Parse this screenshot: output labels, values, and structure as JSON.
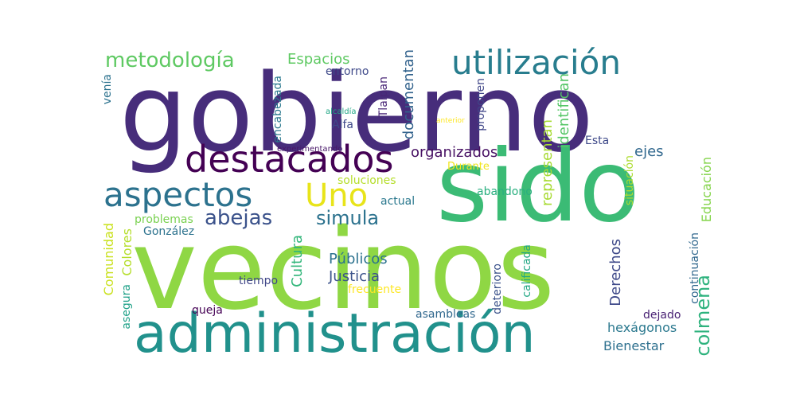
{
  "words": [
    {
      "text": "gobierno",
      "color": "#472d7b"
    },
    {
      "text": "vecinos",
      "color": "#8fd744"
    },
    {
      "text": "sido",
      "color": "#3bbb75"
    },
    {
      "text": "administración",
      "color": "#21918c"
    },
    {
      "text": "destacados",
      "color": "#440154"
    },
    {
      "text": "utilización",
      "color": "#287d8e"
    },
    {
      "text": "aspectos",
      "color": "#2c728e"
    },
    {
      "text": "Uno",
      "color": "#e8e419"
    },
    {
      "text": "metodología",
      "color": "#5ec962"
    },
    {
      "text": "abejas",
      "color": "#3b528b"
    },
    {
      "text": "simula",
      "color": "#2c728e"
    },
    {
      "text": "colmena",
      "color": "#2db27d"
    },
    {
      "text": "Espacios",
      "color": "#5ec962"
    },
    {
      "text": "organizados",
      "color": "#471063"
    },
    {
      "text": "documentan",
      "color": "#33638d"
    },
    {
      "text": "identifican",
      "color": "#56c667"
    },
    {
      "text": "representan",
      "color": "#a8db34"
    },
    {
      "text": "Públicos",
      "color": "#2c728e"
    },
    {
      "text": "Justicia",
      "color": "#3b528b"
    },
    {
      "text": "Cultura",
      "color": "#32b67a"
    },
    {
      "text": "Derechos",
      "color": "#3e4989"
    },
    {
      "text": "hexágonos",
      "color": "#2a788e"
    },
    {
      "text": "Bienestar",
      "color": "#2d708e"
    },
    {
      "text": "Educación",
      "color": "#84d44b"
    },
    {
      "text": "Comunidad",
      "color": "#cae11f"
    },
    {
      "text": "Colores",
      "color": "#b5de2b"
    },
    {
      "text": "entorno",
      "color": "#3e4989"
    },
    {
      "text": "encabezada",
      "color": "#2a788e"
    },
    {
      "text": "venía",
      "color": "#2c728e"
    },
    {
      "text": "Tlalpan",
      "color": "#482576"
    },
    {
      "text": "proponen",
      "color": "#404688"
    },
    {
      "text": "Alfa",
      "color": "#3e4989"
    },
    {
      "text": "alcaldía",
      "color": "#21a685"
    },
    {
      "text": "anterior",
      "color": "#fde725"
    },
    {
      "text": "Esta",
      "color": "#3e4989"
    },
    {
      "text": "experimentando",
      "color": "#481769"
    },
    {
      "text": "ejes",
      "color": "#31688e"
    },
    {
      "text": "Durante",
      "color": "#f1e51d"
    },
    {
      "text": "soluciones",
      "color": "#b5de2b"
    },
    {
      "text": "abandono",
      "color": "#29af7f"
    },
    {
      "text": "actual",
      "color": "#2a788e"
    },
    {
      "text": "situación",
      "color": "#addc30"
    },
    {
      "text": "problemas",
      "color": "#7ad151"
    },
    {
      "text": "González",
      "color": "#2c728e"
    },
    {
      "text": "continuación",
      "color": "#31688e"
    },
    {
      "text": "tiempo",
      "color": "#404688"
    },
    {
      "text": "frecuente",
      "color": "#fde725"
    },
    {
      "text": "calificada",
      "color": "#22a884"
    },
    {
      "text": "deterioro",
      "color": "#3b528b"
    },
    {
      "text": "queja",
      "color": "#440154"
    },
    {
      "text": "asegura",
      "color": "#1fa188"
    },
    {
      "text": "asambleas",
      "color": "#31688e"
    },
    {
      "text": "dejado",
      "color": "#482173"
    }
  ]
}
